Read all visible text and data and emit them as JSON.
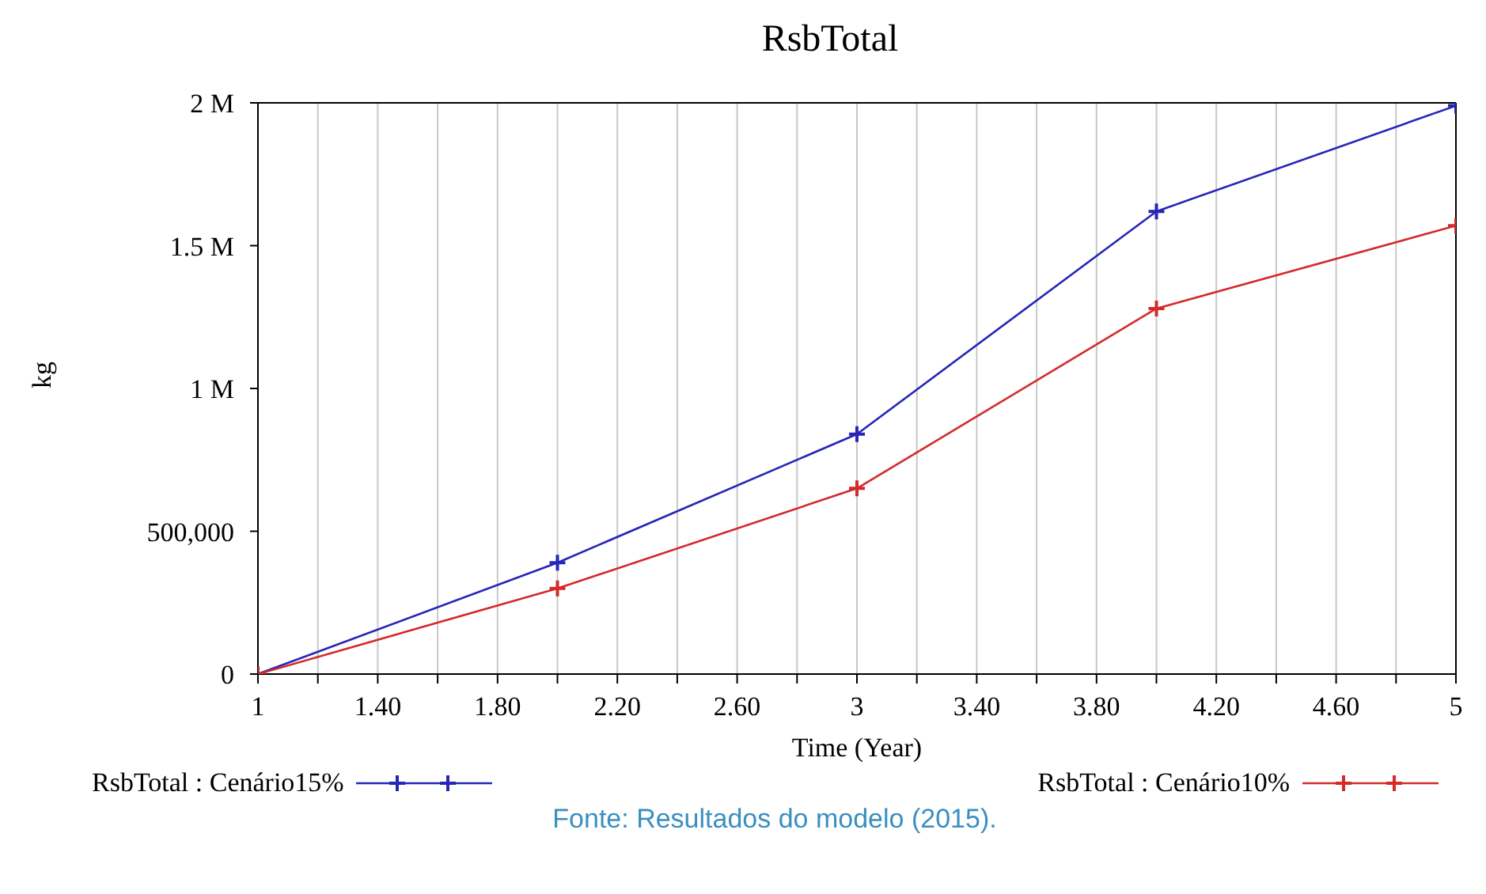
{
  "chart_data": {
    "type": "line",
    "title": "RsbTotal",
    "xlabel": "Time (Year)",
    "ylabel": "kg",
    "x": [
      1,
      2,
      3,
      4,
      5
    ],
    "series": [
      {
        "name": "RsbTotal : Cenário15%",
        "color": "#2626b8",
        "values": [
          0,
          390000,
          840000,
          1620000,
          1990000
        ]
      },
      {
        "name": "RsbTotal : Cenário10%",
        "color": "#d42a2a",
        "values": [
          0,
          300000,
          650000,
          1280000,
          1570000
        ]
      }
    ],
    "xlim": [
      1,
      5
    ],
    "xticks": [
      1,
      {
        "value": 1.2,
        "label": null
      },
      {
        "value": 1.4,
        "label": "1.40"
      },
      {
        "value": 1.6,
        "label": null
      },
      {
        "value": 1.8,
        "label": "1.80"
      },
      {
        "value": 2,
        "label": null
      },
      {
        "value": 2.2,
        "label": "2.20"
      },
      {
        "value": 2.4,
        "label": null
      },
      {
        "value": 2.6,
        "label": "2.60"
      },
      {
        "value": 2.8,
        "label": null
      },
      3,
      {
        "value": 3.2,
        "label": null
      },
      {
        "value": 3.4,
        "label": "3.40"
      },
      {
        "value": 3.6,
        "label": null
      },
      {
        "value": 3.8,
        "label": "3.80"
      },
      {
        "value": 4,
        "label": null
      },
      {
        "value": 4.2,
        "label": "4.20"
      },
      {
        "value": 4.4,
        "label": null
      },
      {
        "value": 4.6,
        "label": "4.60"
      },
      {
        "value": 4.8,
        "label": null
      },
      5
    ],
    "ylim": [
      0,
      2000000
    ],
    "yticks": [
      0,
      {
        "value": 500000,
        "label": "500,000"
      },
      {
        "value": 1000000,
        "label": "1 M"
      },
      {
        "value": 1500000,
        "label": "1.5 M"
      },
      {
        "value": 2000000,
        "label": "2 M"
      }
    ],
    "grid": "x",
    "legend": "bottom",
    "line_style": "solid",
    "marker": "cross",
    "annotations": [
      "Fonte: Resultados do modelo (2015)."
    ]
  }
}
